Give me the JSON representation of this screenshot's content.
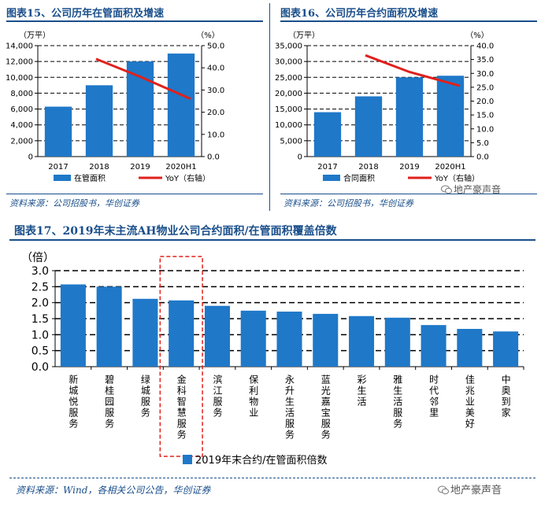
{
  "fig15": {
    "title": "图表15、公司历年在管面积及增速",
    "source": "资料来源：公司招股书，华创证券",
    "chart_data": {
      "type": "bar",
      "title": "图表15、公司历年在管面积及增速",
      "categories": [
        "2017",
        "2018",
        "2019",
        "2020H1"
      ],
      "series": [
        {
          "name": "在管面积",
          "axis": "left",
          "values": [
            6300,
            9000,
            12000,
            13000
          ]
        },
        {
          "name": "YoY（右轴）",
          "axis": "right",
          "type": "line",
          "values": [
            null,
            44,
            36,
            26
          ]
        }
      ],
      "ylabel_left": "（万平）",
      "ylabel_right": "（%）",
      "ylim_left": [
        0,
        14000
      ],
      "yticks_left": [
        "0",
        "2,000",
        "4,000",
        "6,000",
        "8,000",
        "10,000",
        "12,000",
        "14,000"
      ],
      "ylim_right": [
        0,
        50
      ],
      "yticks_right": [
        "0.0",
        "10.0",
        "20.0",
        "30.0",
        "40.0",
        "50.0"
      ],
      "legend": [
        "在管面积",
        "YoY（右轴）"
      ],
      "colors": {
        "bar": "#1f78c8",
        "line": "#e0201b"
      }
    }
  },
  "fig16": {
    "title": "图表16、公司历年合约面积及增速",
    "source": "资料来源：公司招股书，华创证券",
    "watermark": "地产豪声音",
    "chart_data": {
      "type": "bar",
      "title": "图表16、公司历年合约面积及增速",
      "categories": [
        "2017",
        "2018",
        "2019",
        "2020H1"
      ],
      "series": [
        {
          "name": "合同面积",
          "axis": "left",
          "values": [
            14000,
            19000,
            25000,
            25500
          ]
        },
        {
          "name": "YoY（右轴）",
          "axis": "right",
          "type": "line",
          "values": [
            null,
            36.5,
            30.5,
            25.5
          ]
        }
      ],
      "ylabel_left": "（万平）",
      "ylabel_right": "（%）",
      "ylim_left": [
        0,
        35000
      ],
      "yticks_left": [
        "0",
        "5,000",
        "10,000",
        "15,000",
        "20,000",
        "25,000",
        "30,000",
        "35,000"
      ],
      "ylim_right": [
        0,
        40
      ],
      "yticks_right": [
        "0.0",
        "5.0",
        "10.0",
        "15.0",
        "20.0",
        "25.0",
        "30.0",
        "35.0",
        "40.0"
      ],
      "legend": [
        "合同面积",
        "YoY（右轴）"
      ],
      "colors": {
        "bar": "#1f78c8",
        "line": "#e0201b"
      }
    }
  },
  "fig17": {
    "title": "图表17、2019年末主流AH物业公司合约面积/在管面积覆盖倍数",
    "source": "资料来源：Wind，各相关公司公告，华创证券",
    "watermark": "地产豪声音",
    "chart_data": {
      "type": "bar",
      "title": "图表17、2019年末主流AH物业公司合约面积/在管面积覆盖倍数",
      "categories": [
        "新城悦服务",
        "碧桂园服务",
        "绿城服务",
        "金科智慧服务",
        "滨江服务",
        "保利物业",
        "永升生活服务",
        "蓝光嘉宝服务",
        "彩生活",
        "雅生活服务",
        "时代邻里",
        "佳兆业美好",
        "中奥到家"
      ],
      "values": [
        2.57,
        2.5,
        2.12,
        2.07,
        1.9,
        1.75,
        1.72,
        1.65,
        1.58,
        1.53,
        1.3,
        1.18,
        1.1
      ],
      "ylabel": "（倍）",
      "ylim": [
        0,
        3.0
      ],
      "yticks": [
        "0.0",
        "0.5",
        "1.0",
        "1.5",
        "2.0",
        "2.5",
        "3.0"
      ],
      "legend": [
        "2019年末合约/在管面积倍数"
      ],
      "highlight": "金科智慧服务",
      "colors": {
        "bar": "#1f78c8",
        "highlight_box": "#e0201b"
      }
    }
  }
}
